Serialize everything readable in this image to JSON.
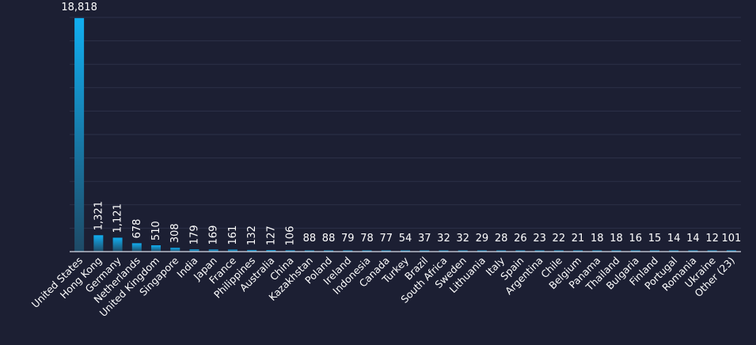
{
  "chart_data": {
    "type": "bar",
    "title": "",
    "xlabel": "",
    "ylabel": "",
    "ylim": [
      0,
      19000
    ],
    "grid": true,
    "colors": {
      "background": "#1c1f33",
      "bar_top": "#11aef0",
      "bar_bottom": "#1e4a66",
      "grid": "#2c3048",
      "text": "#ffffff"
    },
    "categories": [
      "United States",
      "Hong Kong",
      "Germany",
      "Netherlands",
      "United Kingdom",
      "Singapore",
      "India",
      "Japan",
      "France",
      "Philippines",
      "Australia",
      "China",
      "Kazakhstan",
      "Poland",
      "Ireland",
      "Indonesia",
      "Canada",
      "Turkey",
      "Brazil",
      "South Africa",
      "Sweden",
      "Lithuania",
      "Italy",
      "Spain",
      "Argentina",
      "Chile",
      "Belgium",
      "Panama",
      "Thailand",
      "Bulgaria",
      "Finland",
      "Portugal",
      "Romania",
      "Ukraine",
      "Other (23)"
    ],
    "values": [
      18818,
      1321,
      1121,
      678,
      510,
      308,
      179,
      169,
      161,
      132,
      127,
      106,
      88,
      88,
      79,
      78,
      77,
      54,
      37,
      32,
      32,
      29,
      28,
      26,
      23,
      22,
      21,
      18,
      18,
      16,
      15,
      14,
      14,
      12,
      101
    ],
    "value_labels": [
      "18,818",
      "1,321",
      "1,121",
      "678",
      "510",
      "308",
      "179",
      "169",
      "161",
      "132",
      "127",
      "106",
      "88",
      "88",
      "79",
      "78",
      "77",
      "54",
      "37",
      "32",
      "32",
      "29",
      "28",
      "26",
      "23",
      "22",
      "21",
      "18",
      "18",
      "16",
      "15",
      "14",
      "14",
      "12",
      "101"
    ]
  }
}
